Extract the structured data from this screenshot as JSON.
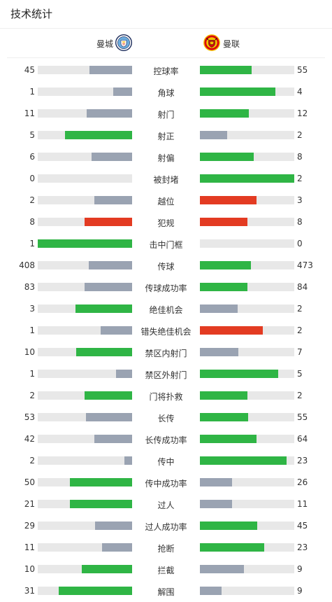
{
  "title": "技术统计",
  "home": {
    "name": "曼城",
    "icon": "man-city-crest-icon"
  },
  "away": {
    "name": "曼联",
    "icon": "man-united-crest-icon"
  },
  "colors": {
    "win": "#2fb545",
    "lose": "#9aa3b2",
    "foul": "#e33b22",
    "track": "#e8e8e8"
  },
  "stats": [
    {
      "label": "控球率",
      "home": 45,
      "away": 55,
      "home_pct": 0.45,
      "away_pct": 0.55,
      "home_color": "lose",
      "away_color": "win"
    },
    {
      "label": "角球",
      "home": 1,
      "away": 4,
      "home_pct": 0.2,
      "away_pct": 0.8,
      "home_color": "lose",
      "away_color": "win"
    },
    {
      "label": "射门",
      "home": 11,
      "away": 12,
      "home_pct": 0.48,
      "away_pct": 0.52,
      "home_color": "lose",
      "away_color": "win"
    },
    {
      "label": "射正",
      "home": 5,
      "away": 2,
      "home_pct": 0.71,
      "away_pct": 0.29,
      "home_color": "win",
      "away_color": "lose"
    },
    {
      "label": "射偏",
      "home": 6,
      "away": 8,
      "home_pct": 0.43,
      "away_pct": 0.57,
      "home_color": "lose",
      "away_color": "win"
    },
    {
      "label": "被封堵",
      "home": 0,
      "away": 2,
      "home_pct": 0.0,
      "away_pct": 1.0,
      "home_color": "lose",
      "away_color": "win"
    },
    {
      "label": "越位",
      "home": 2,
      "away": 3,
      "home_pct": 0.4,
      "away_pct": 0.6,
      "home_color": "lose",
      "away_color": "foul"
    },
    {
      "label": "犯规",
      "home": 8,
      "away": 8,
      "home_pct": 0.5,
      "away_pct": 0.5,
      "home_color": "foul",
      "away_color": "foul"
    },
    {
      "label": "击中门框",
      "home": 1,
      "away": 0,
      "home_pct": 1.0,
      "away_pct": 0.0,
      "home_color": "win",
      "away_color": "lose"
    },
    {
      "label": "传球",
      "home": 408,
      "away": 473,
      "home_pct": 0.46,
      "away_pct": 0.54,
      "home_color": "lose",
      "away_color": "win"
    },
    {
      "label": "传球成功率",
      "home": 83,
      "away": 84,
      "home_pct": 0.5,
      "away_pct": 0.5,
      "home_color": "lose",
      "away_color": "win"
    },
    {
      "label": "绝佳机会",
      "home": 3,
      "away": 2,
      "home_pct": 0.6,
      "away_pct": 0.4,
      "home_color": "win",
      "away_color": "lose"
    },
    {
      "label": "错失绝佳机会",
      "home": 1,
      "away": 2,
      "home_pct": 0.33,
      "away_pct": 0.67,
      "home_color": "lose",
      "away_color": "foul"
    },
    {
      "label": "禁区内射门",
      "home": 10,
      "away": 7,
      "home_pct": 0.59,
      "away_pct": 0.41,
      "home_color": "win",
      "away_color": "lose"
    },
    {
      "label": "禁区外射门",
      "home": 1,
      "away": 5,
      "home_pct": 0.17,
      "away_pct": 0.83,
      "home_color": "lose",
      "away_color": "win"
    },
    {
      "label": "门将扑救",
      "home": 2,
      "away": 2,
      "home_pct": 0.5,
      "away_pct": 0.5,
      "home_color": "win",
      "away_color": "win"
    },
    {
      "label": "长传",
      "home": 53,
      "away": 55,
      "home_pct": 0.49,
      "away_pct": 0.51,
      "home_color": "lose",
      "away_color": "win"
    },
    {
      "label": "长传成功率",
      "home": 42,
      "away": 64,
      "home_pct": 0.4,
      "away_pct": 0.6,
      "home_color": "lose",
      "away_color": "win"
    },
    {
      "label": "传中",
      "home": 2,
      "away": 23,
      "home_pct": 0.08,
      "away_pct": 0.92,
      "home_color": "lose",
      "away_color": "win"
    },
    {
      "label": "传中成功率",
      "home": 50,
      "away": 26,
      "home_pct": 0.66,
      "away_pct": 0.34,
      "home_color": "win",
      "away_color": "lose"
    },
    {
      "label": "过人",
      "home": 21,
      "away": 11,
      "home_pct": 0.66,
      "away_pct": 0.34,
      "home_color": "win",
      "away_color": "lose"
    },
    {
      "label": "过人成功率",
      "home": 29,
      "away": 45,
      "home_pct": 0.39,
      "away_pct": 0.61,
      "home_color": "lose",
      "away_color": "win"
    },
    {
      "label": "抢断",
      "home": 11,
      "away": 23,
      "home_pct": 0.32,
      "away_pct": 0.68,
      "home_color": "lose",
      "away_color": "win"
    },
    {
      "label": "拦截",
      "home": 10,
      "away": 9,
      "home_pct": 0.53,
      "away_pct": 0.47,
      "home_color": "win",
      "away_color": "lose"
    },
    {
      "label": "解围",
      "home": 31,
      "away": 9,
      "home_pct": 0.78,
      "away_pct": 0.23,
      "home_color": "win",
      "away_color": "lose"
    }
  ]
}
